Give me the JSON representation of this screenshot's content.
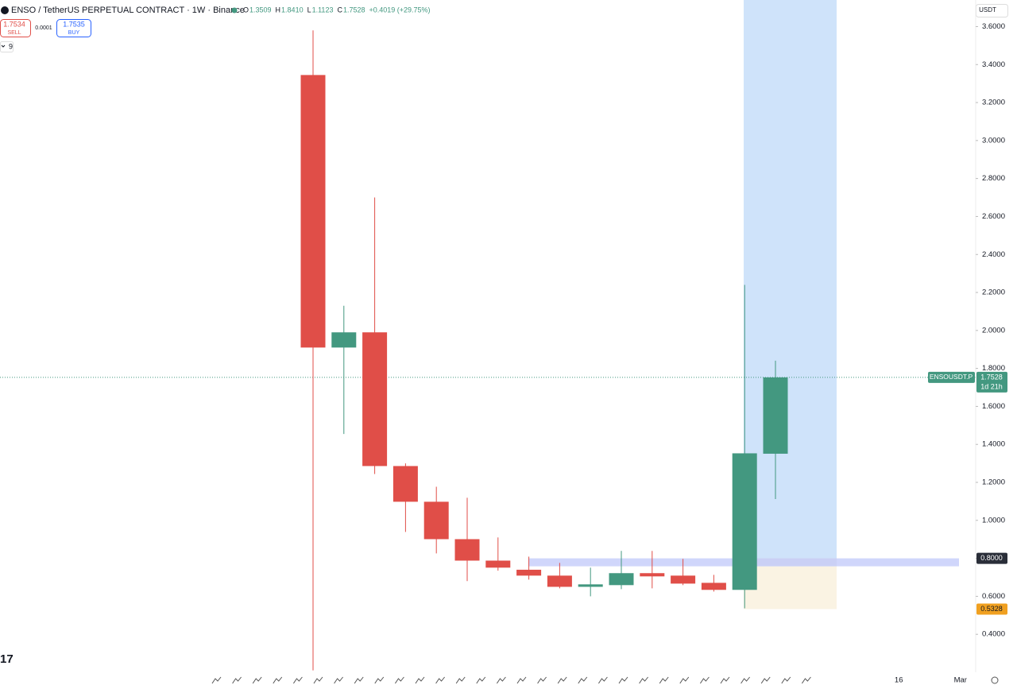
{
  "chart_data": {
    "type": "candlestick",
    "title": "ENSO / TetherUS PERPETUAL CONTRACT · 1W · Binance",
    "ohlc_legend": [
      "O",
      "1.3509",
      "H",
      "1.8410",
      "L",
      "1.1123",
      "C",
      "1.7528",
      "+0.4019 (+29.75%)"
    ],
    "sell": {
      "price": "1.7534",
      "label": "SELL"
    },
    "spread": "0.0001",
    "buy": {
      "price": "1.7535",
      "label": "BUY"
    },
    "indicator_count": "9",
    "currency": "USDT",
    "categories": [
      null,
      null,
      null,
      null,
      null,
      null,
      null,
      null,
      null,
      null,
      null,
      null,
      null,
      null,
      null,
      null,
      null,
      null,
      null,
      "16",
      null,
      "Mar"
    ],
    "open": [
      3.345,
      1.91,
      1.99,
      1.286,
      1.098,
      0.901,
      0.788,
      0.74,
      0.709,
      0.65,
      0.659,
      0.722,
      0.709,
      0.671,
      0.634,
      1.3509,
      null,
      null,
      null,
      null,
      null,
      null
    ],
    "high": [
      3.58,
      2.13,
      2.7,
      1.3,
      1.177,
      1.119,
      0.91,
      0.809,
      0.776,
      0.751,
      0.839,
      0.839,
      0.797,
      0.713,
      2.24,
      1.841,
      null,
      null,
      null,
      null,
      null,
      null
    ],
    "low": [
      0.21,
      1.455,
      1.244,
      0.939,
      0.826,
      0.68,
      0.735,
      0.688,
      0.642,
      0.6,
      0.638,
      0.642,
      0.659,
      0.625,
      0.537,
      1.1123,
      null,
      null,
      null,
      null,
      null,
      null
    ],
    "close": [
      1.91,
      1.99,
      1.286,
      1.098,
      0.901,
      0.788,
      0.751,
      0.709,
      0.65,
      0.663,
      0.722,
      0.705,
      0.667,
      0.634,
      1.353,
      1.7528,
      null,
      null,
      null,
      null,
      null,
      null
    ],
    "up_color": "#439880",
    "down_color": "#e04e48",
    "ylim": [
      0.2,
      3.74
    ],
    "yticks": [
      {
        "value": 3.6,
        "label": "3.6000"
      },
      {
        "value": 3.4,
        "label": "3.4000"
      },
      {
        "value": 3.2,
        "label": "3.2000"
      },
      {
        "value": 3.0,
        "label": "3.0000"
      },
      {
        "value": 2.8,
        "label": "2.8000"
      },
      {
        "value": 2.6,
        "label": "2.6000"
      },
      {
        "value": 2.4,
        "label": "2.4000"
      },
      {
        "value": 2.2,
        "label": "2.2000"
      },
      {
        "value": 2.0,
        "label": "2.0000"
      },
      {
        "value": 1.8,
        "label": "1.8000"
      },
      {
        "value": 1.6,
        "label": "1.6000"
      },
      {
        "value": 1.4,
        "label": "1.4000"
      },
      {
        "value": 1.2,
        "label": "1.2000"
      },
      {
        "value": 1.0,
        "label": "1.0000"
      },
      {
        "value": 0.8,
        "label": "0.8000"
      },
      {
        "value": 0.6,
        "label": "0.6000"
      },
      {
        "value": 0.4,
        "label": "0.4000"
      }
    ],
    "grid": false,
    "last_price": {
      "name": "ENSOUSDT.P",
      "value": 1.7528,
      "countdown": "1d 21h"
    },
    "markers": [
      {
        "value": 0.8,
        "label": "0.8000"
      },
      0.5328
    ]
  }
}
